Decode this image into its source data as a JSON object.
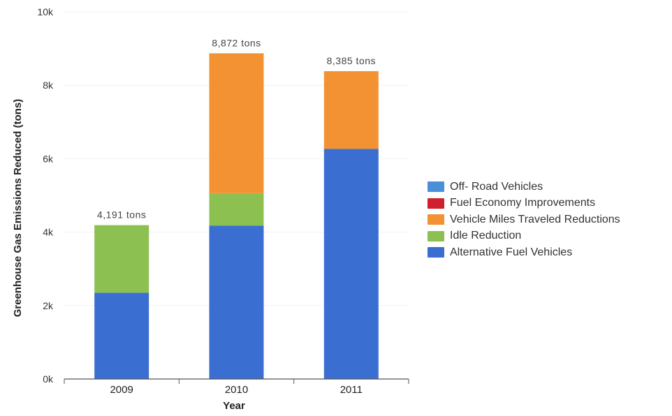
{
  "chart_data": {
    "type": "bar",
    "stacked": true,
    "categories": [
      "2009",
      "2010",
      "2011"
    ],
    "series": [
      {
        "name": "Alternative Fuel Vehicles",
        "color": "#3a6fd1",
        "values": [
          2350,
          4180,
          6270
        ]
      },
      {
        "name": "Idle Reduction",
        "color": "#8cc152",
        "values": [
          1841,
          880,
          0
        ]
      },
      {
        "name": "Vehicle Miles Traveled Reductions",
        "color": "#f39233",
        "values": [
          0,
          3812,
          2115
        ]
      },
      {
        "name": "Fuel Economy Improvements",
        "color": "#d0202e",
        "values": [
          0,
          0,
          0
        ]
      },
      {
        "name": "Off- Road Vehicles",
        "color": "#4a90d9",
        "values": [
          0,
          0,
          0
        ]
      }
    ],
    "totals": [
      "4,191 tons",
      "8,872 tons",
      "8,385 tons"
    ],
    "xlabel": "Year",
    "ylabel": "Greenhouse Gas Emissions Reduced (tons)",
    "ylim": [
      0,
      10000
    ],
    "yticks": [
      {
        "value": 0,
        "label": "0k"
      },
      {
        "value": 2000,
        "label": "2k"
      },
      {
        "value": 4000,
        "label": "4k"
      },
      {
        "value": 6000,
        "label": "6k"
      },
      {
        "value": 8000,
        "label": "8k"
      },
      {
        "value": 10000,
        "label": "10k"
      }
    ],
    "grid": true,
    "legend": {
      "position": "right",
      "order": [
        "Off- Road Vehicles",
        "Fuel Economy Improvements",
        "Vehicle Miles Traveled Reductions",
        "Idle Reduction",
        "Alternative Fuel Vehicles"
      ]
    }
  }
}
